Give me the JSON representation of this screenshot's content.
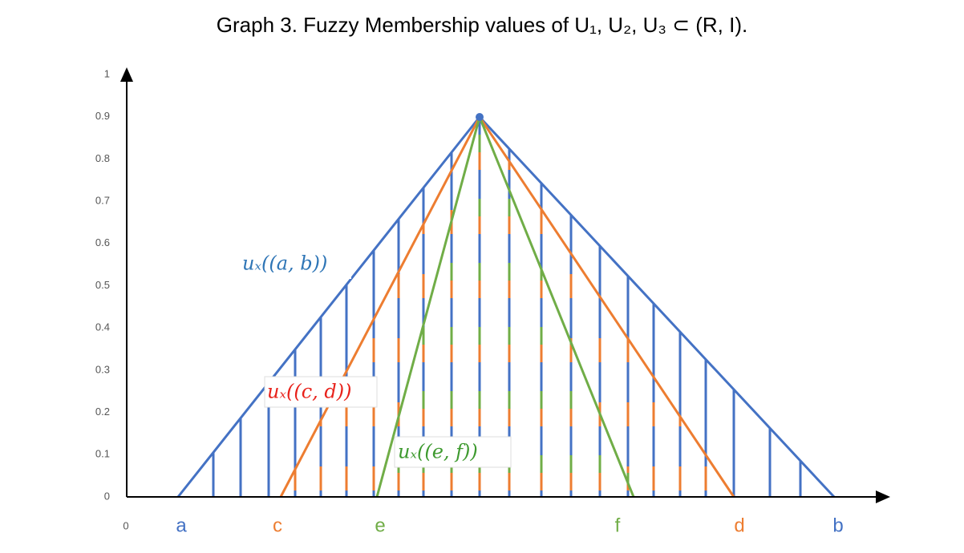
{
  "title": "Graph 3. Fuzzy Membership values of U₁, U₂, U₃ ⊂ (R, I).",
  "y_axis": {
    "ticks": [
      0,
      0.1,
      0.2,
      0.3,
      0.4,
      0.5,
      0.6,
      0.7,
      0.8,
      0.9,
      1
    ]
  },
  "x_axis": {
    "origin": "0",
    "labels": [
      "a",
      "c",
      "e",
      "f",
      "d",
      "b"
    ]
  },
  "curves": [
    {
      "label": "uₓ((a, b))"
    },
    {
      "label": "uₓ((c, d))"
    },
    {
      "label": "uₓ((e, f))"
    }
  ]
}
